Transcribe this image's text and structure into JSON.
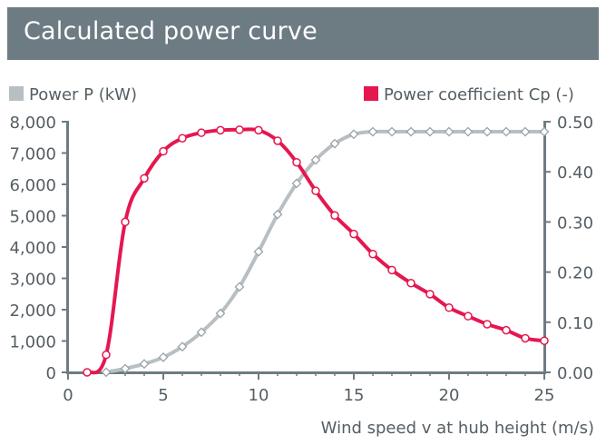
{
  "header": {
    "title": "Calculated power curve"
  },
  "colors": {
    "header_bg": "#6d7b83",
    "power": "#b8bfc3",
    "cp": "#e5174f",
    "axis": "#6d7b83",
    "text": "#555e63"
  },
  "chart_data": {
    "type": "line",
    "title": "Calculated power curve",
    "xlabel": "Wind speed v at hub height (m/s)",
    "ylabel": "Power P (kW)",
    "y2label": "Power coefficient Cp (-)",
    "xlim": [
      0,
      25
    ],
    "ylim": [
      0,
      8000
    ],
    "y2lim": [
      0,
      0.5
    ],
    "x_ticks": [
      "0",
      "5",
      "10",
      "15",
      "20",
      "25"
    ],
    "y_ticks": [
      "0",
      "1,000",
      "2,000",
      "3,000",
      "4,000",
      "5,000",
      "6,000",
      "7,000",
      "8,000"
    ],
    "y2_ticks": [
      "0.00",
      "0.10",
      "0.20",
      "0.30",
      "0.40",
      "0.50"
    ],
    "legend": {
      "placement": "top"
    },
    "grid": false,
    "series": [
      {
        "name": "Power P (kW)",
        "axis": "left",
        "marker": "diamond",
        "x": [
          2,
          3,
          4,
          5,
          6,
          7,
          8,
          9,
          10,
          11,
          12,
          13,
          14,
          15,
          16,
          17,
          18,
          19,
          20,
          21,
          22,
          23,
          24,
          25
        ],
        "y": [
          5,
          120,
          270,
          480,
          820,
          1280,
          1880,
          2730,
          3850,
          5040,
          6030,
          6780,
          7300,
          7600,
          7680,
          7680,
          7680,
          7680,
          7680,
          7680,
          7680,
          7680,
          7680,
          7680
        ]
      },
      {
        "name": "Power coefficient Cp (-)",
        "axis": "right",
        "marker": "circle",
        "x": [
          1,
          2,
          3,
          4,
          5,
          6,
          7,
          8,
          9,
          10,
          11,
          12,
          13,
          14,
          15,
          16,
          17,
          18,
          19,
          20,
          21,
          22,
          23,
          24,
          25
        ],
        "y": [
          0.0,
          0.035,
          0.3,
          0.387,
          0.441,
          0.467,
          0.478,
          0.483,
          0.484,
          0.483,
          0.462,
          0.419,
          0.362,
          0.313,
          0.276,
          0.236,
          0.204,
          0.178,
          0.156,
          0.129,
          0.112,
          0.096,
          0.084,
          0.068,
          0.063
        ]
      }
    ]
  }
}
